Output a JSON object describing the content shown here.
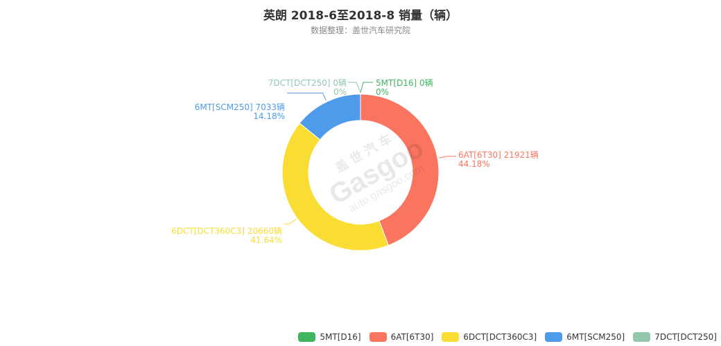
{
  "title": "英朗 2018-6至2018-8 销量（辆）",
  "subtitle": "数据整理：盖世汽车研究院",
  "watermark": {
    "cn": "盖世汽车",
    "brand": "Gasgoo",
    "url": "auto.gasgoo.com"
  },
  "chart_data": {
    "type": "pie",
    "variant": "donut",
    "unit": "辆",
    "slices": [
      {
        "name": "5MT[D16]",
        "value": 0,
        "percent": "0%",
        "color": "#3fb55f"
      },
      {
        "name": "6AT[6T30]",
        "value": 21921,
        "percent": "44.18%",
        "color": "#fa7560"
      },
      {
        "name": "6DCT[DCT360C3]",
        "value": 20660,
        "percent": "41.64%",
        "color": "#f9dd33"
      },
      {
        "name": "6MT[SCM250]",
        "value": 7033,
        "percent": "14.18%",
        "color": "#4e9bec"
      },
      {
        "name": "7DCT[DCT250]",
        "value": 0,
        "percent": "0%",
        "color": "#93c7ac"
      }
    ],
    "legend_position": "bottom-right"
  }
}
